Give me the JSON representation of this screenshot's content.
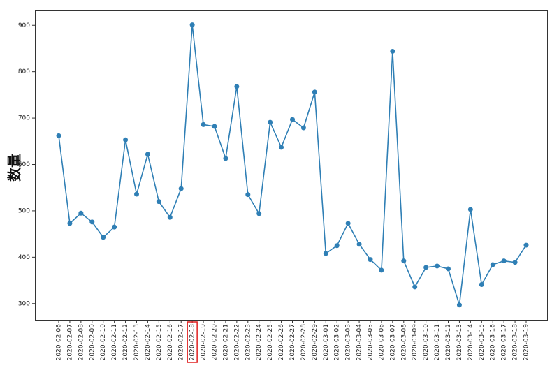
{
  "chart_data": {
    "type": "line",
    "y_label": "数量",
    "categories": [
      "2020-02-06",
      "2020-02-07",
      "2020-02-08",
      "2020-02-09",
      "2020-02-10",
      "2020-02-11",
      "2020-02-12",
      "2020-02-13",
      "2020-02-14",
      "2020-02-15",
      "2020-02-16",
      "2020-02-17",
      "2020-02-18",
      "2020-02-19",
      "2020-02-20",
      "2020-02-21",
      "2020-02-22",
      "2020-02-23",
      "2020-02-24",
      "2020-02-25",
      "2020-02-26",
      "2020-02-27",
      "2020-02-28",
      "2020-02-29",
      "2020-03-01",
      "2020-03-02",
      "2020-03-03",
      "2020-03-04",
      "2020-03-05",
      "2020-03-06",
      "2020-03-07",
      "2020-03-08",
      "2020-03-09",
      "2020-03-10",
      "2020-03-11",
      "2020-03-12",
      "2020-03-13",
      "2020-03-14",
      "2020-03-15",
      "2020-03-16",
      "2020-03-17",
      "2020-03-18",
      "2020-03-19"
    ],
    "values": [
      662,
      473,
      495,
      476,
      443,
      465,
      653,
      536,
      622,
      520,
      486,
      548,
      901,
      686,
      682,
      613,
      768,
      535,
      494,
      691,
      637,
      697,
      679,
      756,
      408,
      425,
      473,
      428,
      395,
      372,
      844,
      392,
      336,
      378,
      381,
      375,
      297,
      503,
      341,
      384,
      392,
      389,
      426
    ],
    "color": "#2f7fb5",
    "highlight_index": 12,
    "highlight_color": "#e02020",
    "ylim": [
      265,
      932
    ],
    "yticks": [
      300,
      400,
      500,
      600,
      700,
      800,
      900
    ],
    "grid": false
  }
}
